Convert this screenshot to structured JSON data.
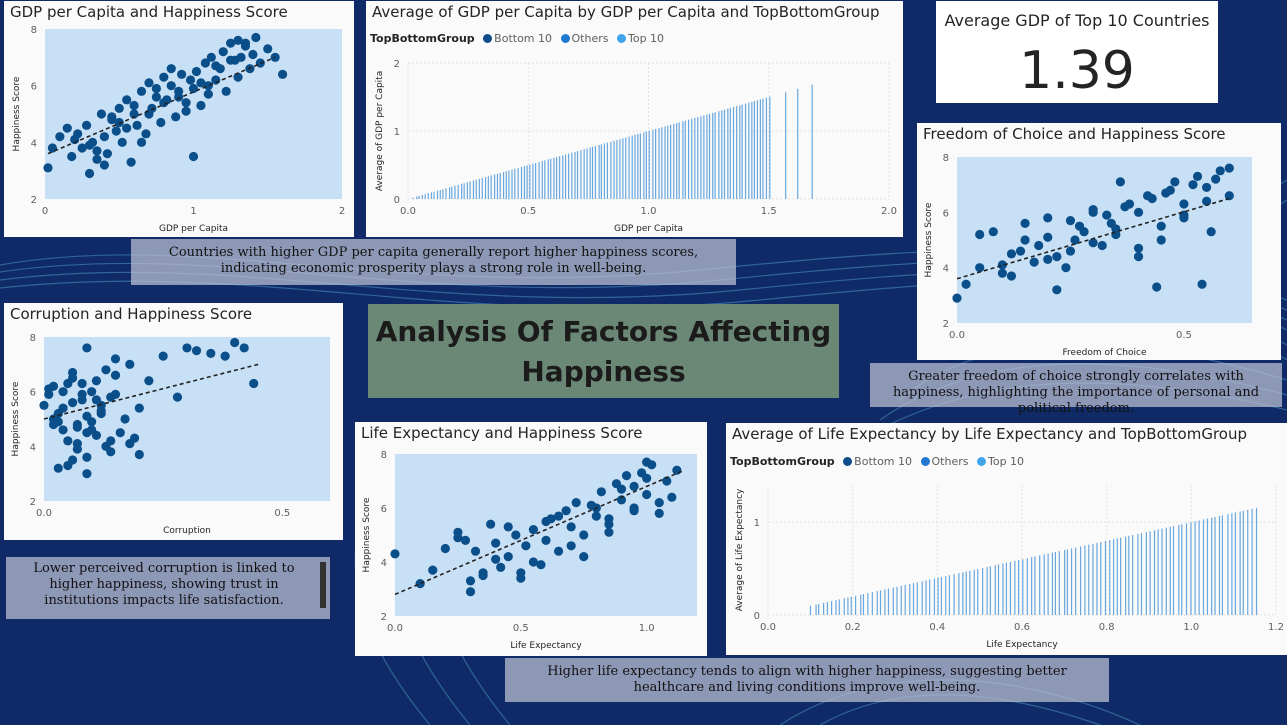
{
  "page": {
    "main_title": "Analysis Of Factors Affecting Happiness",
    "background_color": "#0f2a66",
    "dot_color": "#0b4f8a",
    "bar_color": "#69a7e0",
    "plot_bg": "#c8e0f6"
  },
  "notes": {
    "gdp": "Countries with higher GDP per capita generally report higher happiness scores, indicating economic prosperity plays a strong role in well-being.",
    "freedom": "Greater freedom of choice strongly correlates with happiness, highlighting the importance of personal and political freedom.",
    "corruption": "Lower perceived corruption is linked to higher happiness, showing trust in institutions impacts life satisfaction.",
    "life": "Higher life expectancy tends to align with higher happiness, suggesting better healthcare and living conditions improve well-being."
  },
  "kpi": {
    "label": "Average GDP of Top 10 Countries",
    "value": "1.39"
  },
  "legend": {
    "title": "TopBottomGroup",
    "items": [
      {
        "label": "Bottom 10",
        "color": "#0f4c8a"
      },
      {
        "label": "Others",
        "color": "#1f78d1"
      },
      {
        "label": "Top 10",
        "color": "#41a5ee"
      }
    ]
  },
  "chart_data": [
    {
      "id": "gdp_scatter",
      "type": "scatter",
      "title": "GDP per Capita and Happiness Score",
      "xlabel": "GDP per Capita",
      "ylabel": "Happiness Score",
      "xlim": [
        0,
        2
      ],
      "ylim": [
        2,
        8
      ],
      "xticks": [
        "0",
        "1",
        "2"
      ],
      "yticks": [
        "2",
        "4",
        "6",
        "8"
      ],
      "trend": [
        [
          0.02,
          3.6
        ],
        [
          1.55,
          7.0
        ]
      ],
      "x": [
        0.02,
        0.05,
        0.1,
        0.15,
        0.18,
        0.22,
        0.25,
        0.28,
        0.3,
        0.32,
        0.35,
        0.38,
        0.4,
        0.42,
        0.45,
        0.48,
        0.5,
        0.52,
        0.55,
        0.58,
        0.6,
        0.62,
        0.65,
        0.68,
        0.7,
        0.72,
        0.75,
        0.78,
        0.8,
        0.82,
        0.85,
        0.88,
        0.9,
        0.92,
        0.95,
        0.98,
        1.0,
        1.02,
        1.05,
        1.08,
        1.1,
        1.12,
        1.15,
        1.18,
        1.2,
        1.22,
        1.25,
        1.28,
        1.3,
        1.32,
        1.35,
        1.38,
        1.4,
        1.42,
        1.45,
        1.5,
        1.55,
        1.6,
        0.3,
        0.45,
        0.6,
        0.75,
        0.85,
        0.95,
        1.05,
        1.15,
        1.25,
        1.35,
        0.55,
        0.7,
        0.9,
        1.0,
        0.4,
        0.2,
        0.65,
        0.8,
        1.1,
        1.3,
        0.5,
        0.35
      ],
      "y": [
        3.1,
        3.8,
        4.2,
        4.5,
        3.5,
        4.3,
        3.8,
        4.6,
        2.9,
        4.0,
        3.4,
        5.0,
        4.2,
        3.6,
        4.8,
        4.4,
        5.2,
        4.0,
        5.5,
        3.3,
        5.0,
        4.6,
        5.8,
        4.3,
        6.1,
        5.2,
        5.6,
        4.7,
        6.3,
        5.5,
        6.0,
        4.9,
        5.8,
        6.4,
        5.4,
        6.2,
        5.9,
        6.5,
        5.3,
        6.8,
        6.0,
        7.0,
        6.2,
        6.6,
        7.2,
        5.8,
        7.5,
        6.9,
        7.6,
        7.0,
        7.4,
        6.6,
        7.1,
        7.7,
        6.8,
        7.3,
        7.0,
        6.4,
        3.9,
        4.9,
        5.3,
        5.9,
        6.6,
        5.1,
        6.1,
        6.7,
        6.9,
        7.5,
        4.5,
        5.0,
        5.6,
        3.5,
        3.2,
        4.1,
        4.0,
        5.4,
        5.7,
        6.3,
        4.7,
        3.7
      ]
    },
    {
      "id": "gdp_bar",
      "type": "bar",
      "title": "Average of GDP per Capita by GDP per Capita and TopBottomGroup",
      "xlabel": "GDP per Capita",
      "ylabel": "Average of GDP per Capita",
      "xlim": [
        0,
        2
      ],
      "ylim": [
        0,
        2
      ],
      "xticks": [
        "0.0",
        "0.5",
        "1.0",
        "1.5",
        "2.0"
      ],
      "yticks": [
        "0",
        "1",
        "2"
      ],
      "start": 0.02,
      "end": 1.5,
      "count": 120,
      "extra": [
        1.57,
        1.62,
        1.68
      ]
    },
    {
      "id": "freedom_scatter",
      "type": "scatter",
      "title": "Freedom of Choice and Happiness Score",
      "xlabel": "Freedom of Choice",
      "ylabel": "Happiness Score",
      "xlim": [
        0,
        0.65
      ],
      "ylim": [
        2,
        8
      ],
      "xticks": [
        "0.0",
        "0.5"
      ],
      "yticks": [
        "2",
        "4",
        "6",
        "8"
      ],
      "trend": [
        [
          0.0,
          3.6
        ],
        [
          0.6,
          6.5
        ]
      ],
      "x": [
        0.0,
        0.02,
        0.05,
        0.08,
        0.1,
        0.12,
        0.15,
        0.17,
        0.2,
        0.22,
        0.25,
        0.27,
        0.3,
        0.32,
        0.35,
        0.37,
        0.4,
        0.42,
        0.45,
        0.47,
        0.5,
        0.52,
        0.55,
        0.57,
        0.6,
        0.1,
        0.15,
        0.2,
        0.25,
        0.3,
        0.35,
        0.4,
        0.45,
        0.5,
        0.55,
        0.6,
        0.12,
        0.18,
        0.22,
        0.28,
        0.33,
        0.38,
        0.43,
        0.48,
        0.53,
        0.58,
        0.05,
        0.14,
        0.24,
        0.34,
        0.44,
        0.54,
        0.3,
        0.2,
        0.4,
        0.5,
        0.36,
        0.46,
        0.56,
        0.26
      ],
      "y": [
        2.9,
        3.4,
        4.0,
        5.3,
        3.8,
        4.5,
        5.6,
        4.2,
        5.1,
        3.2,
        4.6,
        5.5,
        6.0,
        4.8,
        5.2,
        6.2,
        4.4,
        6.6,
        5.0,
        6.8,
        5.8,
        7.0,
        6.4,
        7.2,
        6.6,
        4.1,
        5.0,
        4.3,
        5.7,
        4.9,
        5.4,
        6.0,
        5.5,
        6.3,
        6.9,
        7.6,
        3.7,
        4.8,
        4.4,
        5.3,
        5.9,
        6.3,
        6.5,
        7.1,
        7.3,
        7.5,
        5.2,
        4.6,
        4.0,
        5.6,
        3.3,
        3.4,
        6.1,
        5.8,
        4.7,
        5.9,
        7.1,
        6.7,
        5.3,
        5.0
      ]
    },
    {
      "id": "corruption_scatter",
      "type": "scatter",
      "title": "Corruption and Happiness Score",
      "xlabel": "Corruption",
      "ylabel": "Happiness Score",
      "xlim": [
        0,
        0.6
      ],
      "ylim": [
        2,
        8
      ],
      "xticks": [
        "0.0",
        "0.5"
      ],
      "yticks": [
        "2",
        "4",
        "6",
        "8"
      ],
      "trend": [
        [
          0.0,
          5.0
        ],
        [
          0.45,
          7.0
        ]
      ],
      "x": [
        0.0,
        0.01,
        0.02,
        0.03,
        0.04,
        0.05,
        0.06,
        0.07,
        0.08,
        0.09,
        0.1,
        0.11,
        0.12,
        0.13,
        0.14,
        0.15,
        0.16,
        0.17,
        0.18,
        0.19,
        0.2,
        0.01,
        0.02,
        0.03,
        0.04,
        0.05,
        0.06,
        0.07,
        0.08,
        0.09,
        0.1,
        0.11,
        0.12,
        0.13,
        0.14,
        0.15,
        0.02,
        0.04,
        0.06,
        0.08,
        0.1,
        0.12,
        0.14,
        0.05,
        0.07,
        0.09,
        0.11,
        0.03,
        0.06,
        0.09,
        0.25,
        0.3,
        0.32,
        0.35,
        0.38,
        0.4,
        0.42,
        0.44,
        0.28,
        0.22,
        0.15,
        0.18,
        0.2,
        0.09,
        0.07
      ],
      "y": [
        5.5,
        6.1,
        4.8,
        5.2,
        6.0,
        4.2,
        5.6,
        3.9,
        6.3,
        5.1,
        4.6,
        6.4,
        5.3,
        4.0,
        5.8,
        6.6,
        4.5,
        5.0,
        7.0,
        4.3,
        5.4,
        5.9,
        6.2,
        4.9,
        5.4,
        3.3,
        6.5,
        4.7,
        5.7,
        3.6,
        6.0,
        4.4,
        5.2,
        6.8,
        3.8,
        7.2,
        5.0,
        4.6,
        3.5,
        5.9,
        4.9,
        5.5,
        4.2,
        6.3,
        4.1,
        3.0,
        5.7,
        3.2,
        6.7,
        4.5,
        7.3,
        7.6,
        7.5,
        7.4,
        7.3,
        7.8,
        7.6,
        6.3,
        5.8,
        6.4,
        5.9,
        4.1,
        3.7,
        7.6,
        4.8
      ]
    },
    {
      "id": "life_scatter",
      "type": "scatter",
      "title": "Life Expectancy and Happiness Score",
      "xlabel": "Life Expectancy",
      "ylabel": "Happiness Score",
      "xlim": [
        0,
        1.2
      ],
      "ylim": [
        2,
        8
      ],
      "xticks": [
        "0.0",
        "0.5",
        "1.0"
      ],
      "yticks": [
        "2",
        "4",
        "6",
        "8"
      ],
      "trend": [
        [
          0.0,
          2.8
        ],
        [
          1.15,
          7.4
        ]
      ],
      "x": [
        0.0,
        0.1,
        0.15,
        0.2,
        0.25,
        0.28,
        0.3,
        0.32,
        0.35,
        0.38,
        0.4,
        0.42,
        0.45,
        0.48,
        0.5,
        0.52,
        0.55,
        0.58,
        0.6,
        0.62,
        0.65,
        0.68,
        0.7,
        0.72,
        0.75,
        0.78,
        0.8,
        0.82,
        0.85,
        0.88,
        0.9,
        0.92,
        0.95,
        0.98,
        1.0,
        1.02,
        1.05,
        1.08,
        1.1,
        1.12,
        0.3,
        0.4,
        0.5,
        0.6,
        0.7,
        0.8,
        0.9,
        1.0,
        0.45,
        0.55,
        0.65,
        0.75,
        0.85,
        0.95,
        1.05,
        0.35,
        0.25,
        0.85,
        0.95,
        1.0
      ],
      "y": [
        4.3,
        3.2,
        3.7,
        4.5,
        5.1,
        4.8,
        2.9,
        4.4,
        3.6,
        5.4,
        4.7,
        3.8,
        4.2,
        5.0,
        3.4,
        4.6,
        5.2,
        3.9,
        4.8,
        5.6,
        4.4,
        5.9,
        5.3,
        6.2,
        5.0,
        6.1,
        5.7,
        6.6,
        5.4,
        6.9,
        6.3,
        7.2,
        6.0,
        7.3,
        6.5,
        7.6,
        5.8,
        7.0,
        6.4,
        7.4,
        3.3,
        4.1,
        3.6,
        5.5,
        4.6,
        6.0,
        6.7,
        7.1,
        5.3,
        4.0,
        5.7,
        4.2,
        5.6,
        6.8,
        6.2,
        3.5,
        4.9,
        5.1,
        5.9,
        7.7
      ]
    },
    {
      "id": "life_bar",
      "type": "bar",
      "title": "Average of Life Expectancy by Life Expectancy and TopBottomGroup",
      "xlabel": "Life Expectancy",
      "ylabel": "Average of Life Expectancy",
      "xlim": [
        0,
        1.2
      ],
      "ylim": [
        0,
        1.4
      ],
      "xticks": [
        "0.0",
        "0.2",
        "0.4",
        "0.6",
        "0.8",
        "1.0",
        "1.2"
      ],
      "yticks": [
        "0",
        "1"
      ],
      "start": 0.1,
      "end": 1.15,
      "count": 110,
      "extra": []
    }
  ]
}
